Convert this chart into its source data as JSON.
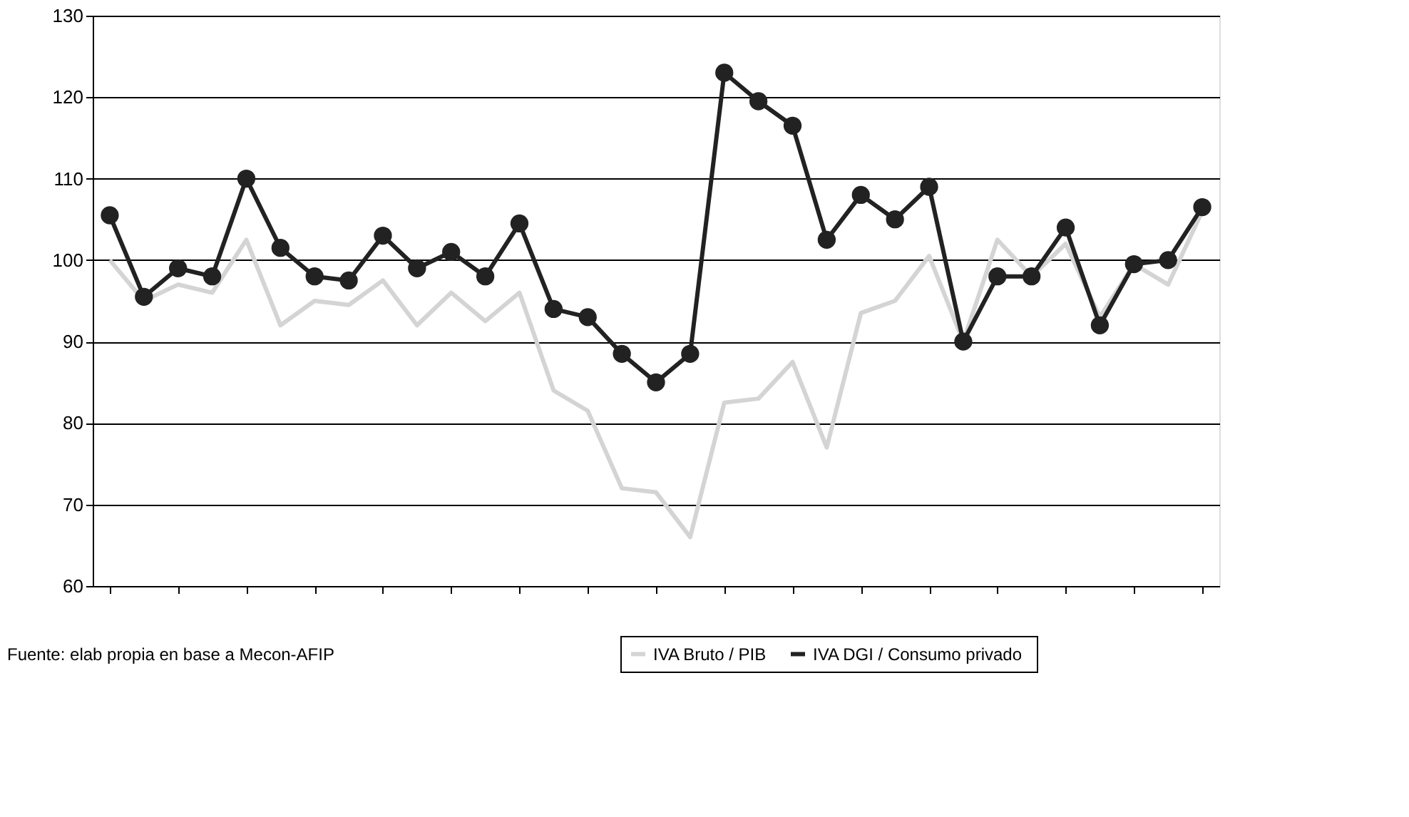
{
  "chart_data": {
    "type": "line",
    "categories": [
      null,
      null,
      null,
      null,
      null,
      null,
      null,
      null,
      null,
      null,
      null,
      null,
      null,
      null,
      null,
      null,
      null,
      null,
      null,
      null,
      null,
      null,
      null,
      null,
      null,
      null,
      null,
      null,
      null,
      null,
      null,
      null,
      null
    ],
    "series": [
      {
        "name": "IVA Bruto / PIB",
        "color": "#d4d4d4",
        "marker": "none",
        "values": [
          100,
          95,
          97,
          96,
          102.5,
          92,
          95,
          94.5,
          97.5,
          92,
          96,
          92.5,
          96,
          84,
          81.5,
          72,
          71.5,
          66,
          82.5,
          83,
          87.5,
          77,
          93.5,
          95,
          100.5,
          90,
          102.5,
          98,
          102,
          93,
          99.5,
          97,
          106
        ]
      },
      {
        "name": "IVA DGI / Consumo  privado",
        "color": "#222222",
        "marker": "circle",
        "values": [
          105.5,
          95.5,
          99,
          98,
          110,
          101.5,
          98,
          97.5,
          103,
          99,
          101,
          98,
          104.5,
          94,
          93,
          88.5,
          85,
          88.5,
          123,
          119.5,
          116.5,
          102.5,
          108,
          105,
          109,
          90,
          98,
          98,
          104,
          92,
          99.5,
          100,
          106.5
        ]
      }
    ],
    "ylim": [
      60,
      130
    ],
    "yticks": [
      60,
      70,
      80,
      90,
      100,
      110,
      120,
      130
    ],
    "grid": "y",
    "legend": "bottom",
    "tick_labels": "y",
    "line_style": "solid",
    "annotations": [
      "Fuente: elab propia en base a Mecon-AFIP"
    ]
  }
}
